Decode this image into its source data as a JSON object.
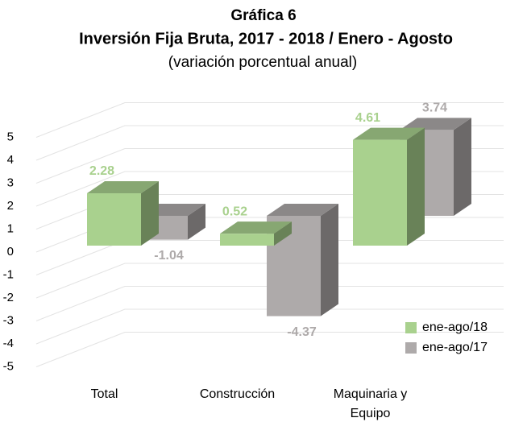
{
  "chart_data": {
    "type": "bar3d",
    "title": "Gráfica 6",
    "subtitle": "Inversión Fija Bruta, 2017 - 2018 / Enero - Agosto",
    "note": "(variación porcentual anual)",
    "categories": [
      "Total",
      "Construcción",
      "Maquinaria y Equipo"
    ],
    "series": [
      {
        "name": "ene-ago/18",
        "color": "#a9d18e",
        "values": [
          2.28,
          0.52,
          4.61
        ]
      },
      {
        "name": "ene-ago/17",
        "color": "#aeaaaa",
        "values": [
          -1.04,
          -4.37,
          3.74
        ]
      }
    ],
    "ylim": [
      -5,
      5
    ],
    "yticks": [
      -5,
      -4,
      -3,
      -2,
      -1,
      0,
      1,
      2,
      3,
      4,
      5
    ],
    "grid": true,
    "legend": "bottom-right"
  }
}
